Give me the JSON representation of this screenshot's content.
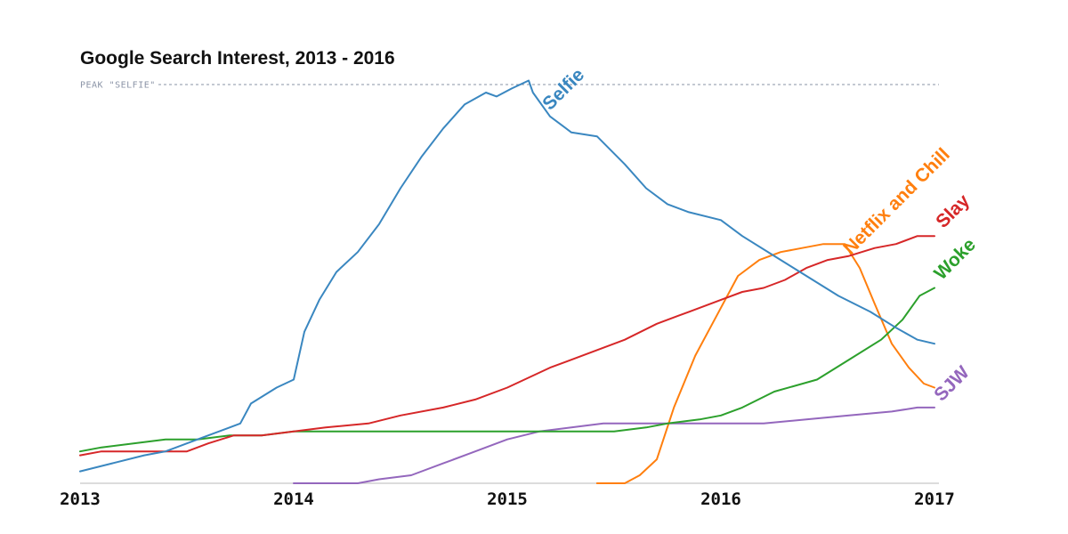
{
  "chart_data": {
    "type": "line",
    "title": "Google Search Interest, 2013 - 2016",
    "xlabel": "",
    "ylabel": "",
    "xlim": [
      2013,
      2017
    ],
    "ylim": [
      0,
      100
    ],
    "grid": false,
    "legend": "none",
    "x_ticks": [
      "2013",
      "2014",
      "2015",
      "2016",
      "2017"
    ],
    "reference_line": {
      "label": "PEAK \"SELFIE\"",
      "value": 100
    },
    "series": [
      {
        "name": "Selfie",
        "color": "#3a87c0",
        "points": [
          [
            2013.0,
            3
          ],
          [
            2013.15,
            5
          ],
          [
            2013.3,
            7
          ],
          [
            2013.4,
            8
          ],
          [
            2013.55,
            11
          ],
          [
            2013.7,
            14
          ],
          [
            2013.75,
            15
          ],
          [
            2013.8,
            20
          ],
          [
            2013.92,
            24
          ],
          [
            2014.0,
            26
          ],
          [
            2014.05,
            38
          ],
          [
            2014.12,
            46
          ],
          [
            2014.2,
            53
          ],
          [
            2014.3,
            58
          ],
          [
            2014.4,
            65
          ],
          [
            2014.5,
            74
          ],
          [
            2014.6,
            82
          ],
          [
            2014.7,
            89
          ],
          [
            2014.8,
            95
          ],
          [
            2014.9,
            98
          ],
          [
            2014.95,
            97
          ],
          [
            2015.02,
            99
          ],
          [
            2015.1,
            101
          ],
          [
            2015.12,
            98
          ],
          [
            2015.2,
            92
          ],
          [
            2015.3,
            88
          ],
          [
            2015.42,
            87
          ],
          [
            2015.55,
            80
          ],
          [
            2015.65,
            74
          ],
          [
            2015.75,
            70
          ],
          [
            2015.85,
            68
          ],
          [
            2016.0,
            66
          ],
          [
            2016.1,
            62
          ],
          [
            2016.25,
            57
          ],
          [
            2016.4,
            52
          ],
          [
            2016.55,
            47
          ],
          [
            2016.7,
            43
          ],
          [
            2016.82,
            39
          ],
          [
            2016.92,
            36
          ],
          [
            2017.0,
            35
          ]
        ]
      },
      {
        "name": "Slay",
        "color": "#d62728",
        "points": [
          [
            2013.0,
            7
          ],
          [
            2013.1,
            8
          ],
          [
            2013.25,
            8
          ],
          [
            2013.4,
            8
          ],
          [
            2013.5,
            8
          ],
          [
            2013.6,
            10
          ],
          [
            2013.72,
            12
          ],
          [
            2013.85,
            12
          ],
          [
            2014.0,
            13
          ],
          [
            2014.15,
            14
          ],
          [
            2014.35,
            15
          ],
          [
            2014.5,
            17
          ],
          [
            2014.7,
            19
          ],
          [
            2014.85,
            21
          ],
          [
            2015.0,
            24
          ],
          [
            2015.2,
            29
          ],
          [
            2015.4,
            33
          ],
          [
            2015.55,
            36
          ],
          [
            2015.7,
            40
          ],
          [
            2015.85,
            43
          ],
          [
            2016.0,
            46
          ],
          [
            2016.1,
            48
          ],
          [
            2016.2,
            49
          ],
          [
            2016.3,
            51
          ],
          [
            2016.4,
            54
          ],
          [
            2016.5,
            56
          ],
          [
            2016.6,
            57
          ],
          [
            2016.72,
            59
          ],
          [
            2016.82,
            60
          ],
          [
            2016.92,
            62
          ],
          [
            2017.0,
            62
          ]
        ]
      },
      {
        "name": "Woke",
        "color": "#2ca02c",
        "points": [
          [
            2013.0,
            8
          ],
          [
            2013.1,
            9
          ],
          [
            2013.25,
            10
          ],
          [
            2013.4,
            11
          ],
          [
            2013.55,
            11
          ],
          [
            2013.7,
            12
          ],
          [
            2013.85,
            12
          ],
          [
            2014.0,
            13
          ],
          [
            2014.2,
            13
          ],
          [
            2014.4,
            13
          ],
          [
            2014.6,
            13
          ],
          [
            2014.8,
            13
          ],
          [
            2015.0,
            13
          ],
          [
            2015.25,
            13
          ],
          [
            2015.5,
            13
          ],
          [
            2015.65,
            14
          ],
          [
            2015.75,
            15
          ],
          [
            2015.9,
            16
          ],
          [
            2016.0,
            17
          ],
          [
            2016.1,
            19
          ],
          [
            2016.25,
            23
          ],
          [
            2016.45,
            26
          ],
          [
            2016.6,
            31
          ],
          [
            2016.75,
            36
          ],
          [
            2016.85,
            41
          ],
          [
            2016.93,
            47
          ],
          [
            2017.0,
            49
          ]
        ]
      },
      {
        "name": "Netflix and Chill",
        "color": "#ff7f0e",
        "points": [
          [
            2015.42,
            0
          ],
          [
            2015.55,
            0
          ],
          [
            2015.62,
            2
          ],
          [
            2015.7,
            6
          ],
          [
            2015.78,
            19
          ],
          [
            2015.88,
            32
          ],
          [
            2015.98,
            42
          ],
          [
            2016.08,
            52
          ],
          [
            2016.18,
            56
          ],
          [
            2016.28,
            58
          ],
          [
            2016.38,
            59
          ],
          [
            2016.48,
            60
          ],
          [
            2016.58,
            60
          ],
          [
            2016.65,
            54
          ],
          [
            2016.72,
            45
          ],
          [
            2016.8,
            35
          ],
          [
            2016.88,
            29
          ],
          [
            2016.95,
            25
          ],
          [
            2017.0,
            24
          ]
        ]
      },
      {
        "name": "SJW",
        "color": "#9467bd",
        "points": [
          [
            2014.0,
            0
          ],
          [
            2014.2,
            0
          ],
          [
            2014.3,
            0
          ],
          [
            2014.4,
            1
          ],
          [
            2014.55,
            2
          ],
          [
            2014.7,
            5
          ],
          [
            2014.85,
            8
          ],
          [
            2015.0,
            11
          ],
          [
            2015.15,
            13
          ],
          [
            2015.3,
            14
          ],
          [
            2015.45,
            15
          ],
          [
            2015.55,
            15
          ],
          [
            2015.7,
            15
          ],
          [
            2015.85,
            15
          ],
          [
            2016.0,
            15
          ],
          [
            2016.2,
            15
          ],
          [
            2016.4,
            16
          ],
          [
            2016.6,
            17
          ],
          [
            2016.8,
            18
          ],
          [
            2016.92,
            19
          ],
          [
            2017.0,
            19
          ]
        ]
      }
    ]
  }
}
